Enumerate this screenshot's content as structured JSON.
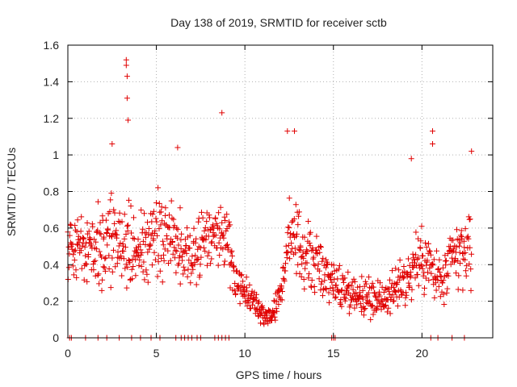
{
  "chart_data": {
    "type": "scatter",
    "title": "Day 138 of 2019, SRMTID for receiver sctb",
    "xlabel": "GPS time / hours",
    "ylabel": "SRMTID / TECUs",
    "xlim": [
      0,
      24
    ],
    "ylim": [
      0,
      1.6
    ],
    "xticks": [
      0,
      5,
      10,
      15,
      20
    ],
    "xtick_labels": [
      "0",
      "5",
      "10",
      "15",
      "20"
    ],
    "yticks": [
      0,
      0.2,
      0.4,
      0.6,
      0.8,
      1.0,
      1.2,
      1.4,
      1.6
    ],
    "ytick_labels": [
      "0",
      "0.2",
      "0.4",
      "0.6",
      "0.8",
      "1",
      "1.2",
      "1.4",
      "1.6"
    ],
    "grid": true,
    "marker": "+",
    "series": [
      {
        "name": "SRMTID",
        "color": "#e00000",
        "profile": [
          {
            "x": 0.0,
            "mean": 0.5,
            "spread": 0.18
          },
          {
            "x": 1.0,
            "mean": 0.52,
            "spread": 0.18
          },
          {
            "x": 2.0,
            "mean": 0.5,
            "spread": 0.18
          },
          {
            "x": 3.0,
            "mean": 0.55,
            "spread": 0.2
          },
          {
            "x": 4.0,
            "mean": 0.45,
            "spread": 0.18
          },
          {
            "x": 5.0,
            "mean": 0.55,
            "spread": 0.2
          },
          {
            "x": 6.0,
            "mean": 0.55,
            "spread": 0.2
          },
          {
            "x": 7.0,
            "mean": 0.45,
            "spread": 0.18
          },
          {
            "x": 8.0,
            "mean": 0.55,
            "spread": 0.2
          },
          {
            "x": 9.0,
            "mean": 0.55,
            "spread": 0.18
          },
          {
            "x": 9.5,
            "mean": 0.3,
            "spread": 0.08
          },
          {
            "x": 10.0,
            "mean": 0.25,
            "spread": 0.08
          },
          {
            "x": 10.5,
            "mean": 0.2,
            "spread": 0.06
          },
          {
            "x": 11.0,
            "mean": 0.13,
            "spread": 0.05
          },
          {
            "x": 11.5,
            "mean": 0.12,
            "spread": 0.05
          },
          {
            "x": 12.0,
            "mean": 0.25,
            "spread": 0.1
          },
          {
            "x": 12.5,
            "mean": 0.55,
            "spread": 0.18
          },
          {
            "x": 13.0,
            "mean": 0.5,
            "spread": 0.18
          },
          {
            "x": 14.0,
            "mean": 0.4,
            "spread": 0.15
          },
          {
            "x": 15.0,
            "mean": 0.3,
            "spread": 0.12
          },
          {
            "x": 16.0,
            "mean": 0.25,
            "spread": 0.1
          },
          {
            "x": 17.0,
            "mean": 0.22,
            "spread": 0.1
          },
          {
            "x": 18.0,
            "mean": 0.22,
            "spread": 0.1
          },
          {
            "x": 19.0,
            "mean": 0.3,
            "spread": 0.12
          },
          {
            "x": 20.0,
            "mean": 0.45,
            "spread": 0.18
          },
          {
            "x": 21.0,
            "mean": 0.3,
            "spread": 0.15
          },
          {
            "x": 22.0,
            "mean": 0.45,
            "spread": 0.18
          },
          {
            "x": 22.8,
            "mean": 0.5,
            "spread": 0.2
          }
        ],
        "outliers": [
          {
            "x": 3.3,
            "y": 1.52
          },
          {
            "x": 3.3,
            "y": 1.49
          },
          {
            "x": 3.35,
            "y": 1.43
          },
          {
            "x": 3.35,
            "y": 1.31
          },
          {
            "x": 3.4,
            "y": 1.19
          },
          {
            "x": 8.7,
            "y": 1.23
          },
          {
            "x": 12.4,
            "y": 1.13
          },
          {
            "x": 12.8,
            "y": 1.13
          },
          {
            "x": 20.6,
            "y": 1.13
          },
          {
            "x": 20.6,
            "y": 1.06
          },
          {
            "x": 19.4,
            "y": 0.98
          },
          {
            "x": 22.8,
            "y": 1.02
          },
          {
            "x": 6.2,
            "y": 1.04
          },
          {
            "x": 2.5,
            "y": 1.06
          }
        ],
        "zero_points_x": [
          0.1,
          0.2,
          1.0,
          1.7,
          2.2,
          2.9,
          3.6,
          4.1,
          4.7,
          5.2,
          6.1,
          6.4,
          6.6,
          6.8,
          7.0,
          7.3,
          7.5,
          8.3,
          8.5,
          8.7,
          8.9,
          9.1,
          14.9,
          15.0,
          15.1,
          20.5,
          20.9,
          21.7,
          22.4
        ]
      }
    ]
  }
}
